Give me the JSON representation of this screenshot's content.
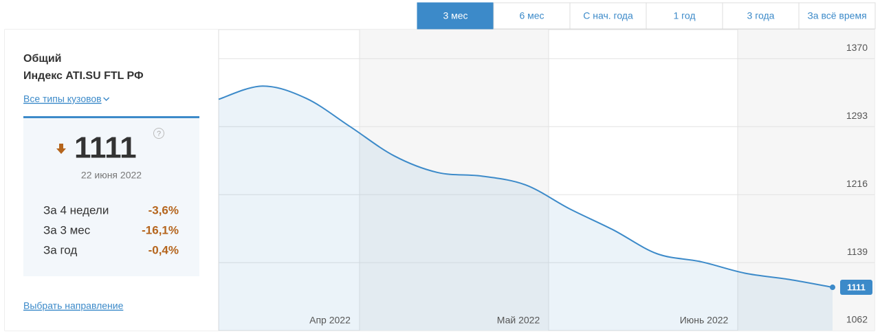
{
  "tabs": [
    "3 мес",
    "6 мес",
    "С нач. года",
    "1 год",
    "3 года",
    "За всё время"
  ],
  "active_tab": 0,
  "sidebar": {
    "title": "Общий",
    "subtitle": "Индекс ATI.SU FTL РФ",
    "filter": "Все типы кузовов",
    "value": "1111",
    "help": "?",
    "date": "22 июня 2022",
    "stats": [
      [
        "За 4 недели",
        "-3,6%"
      ],
      [
        "За 3 мес",
        "-16,1%"
      ],
      [
        "За год",
        "-0,4%"
      ]
    ],
    "link": "Выбрать направление"
  },
  "chart_data": {
    "type": "area",
    "categories": [
      null,
      null,
      null,
      null,
      null,
      null,
      null,
      null,
      null,
      null,
      null,
      null,
      null,
      null,
      null
    ],
    "values": [
      1324,
      1339,
      1325,
      1293,
      1260,
      1241,
      1237,
      1227,
      1200,
      1176,
      1149,
      1140,
      1127,
      1120,
      1111
    ],
    "month_labels": [
      "Апр 2022",
      "Май 2022",
      "Июнь 2022"
    ],
    "color": "#3c8ac9",
    "ylim": [
      1062,
      1403
    ],
    "yticks": [
      1062,
      1139,
      1216,
      1293,
      1370
    ],
    "grid": true
  }
}
